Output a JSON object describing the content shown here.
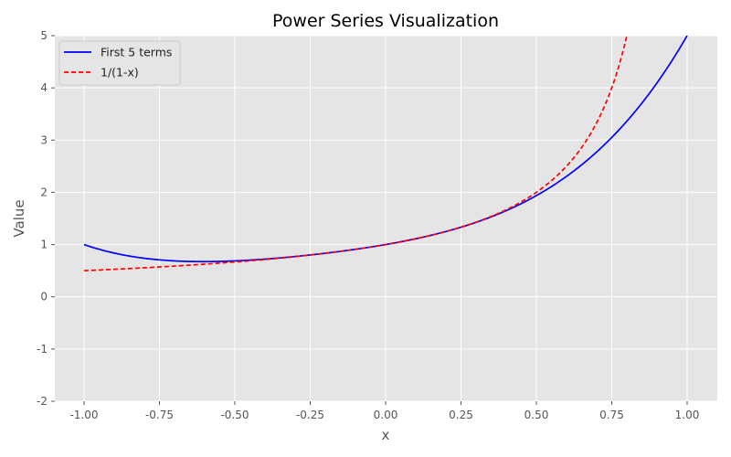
{
  "chart_data": {
    "type": "line",
    "title": "Power Series Visualization",
    "xlabel": "x",
    "ylabel": "Value",
    "xlim": [
      -1.1,
      1.1
    ],
    "ylim": [
      -2,
      5
    ],
    "xticks": [
      -1.0,
      -0.75,
      -0.5,
      -0.25,
      0.0,
      0.25,
      0.5,
      0.75,
      1.0
    ],
    "xtick_labels": [
      "-1.00",
      "-0.75",
      "-0.50",
      "-0.25",
      "0.00",
      "0.25",
      "0.50",
      "0.75",
      "1.00"
    ],
    "yticks": [
      -2,
      -1,
      0,
      1,
      2,
      3,
      4,
      5
    ],
    "ytick_labels": [
      "-2",
      "-1",
      "0",
      "1",
      "2",
      "3",
      "4",
      "5"
    ],
    "grid": true,
    "legend_position": "upper left",
    "series": [
      {
        "name": "First 5 terms",
        "color": "#0000ff",
        "style": "solid",
        "formula": "1 + x + x^2 + x^3 + x^4",
        "x": [
          -1.0,
          -0.75,
          -0.5,
          -0.25,
          0.0,
          0.25,
          0.5,
          0.75,
          1.0
        ],
        "values": [
          1.0,
          0.684,
          0.688,
          0.801,
          1.0,
          1.332,
          1.938,
          3.051,
          5.0
        ]
      },
      {
        "name": "1/(1-x)",
        "color": "#ff0000",
        "style": "dashed",
        "formula": "1/(1-x)",
        "x": [
          -1.0,
          -0.75,
          -0.5,
          -0.25,
          0.0,
          0.25,
          0.5,
          0.75,
          0.8
        ],
        "values": [
          0.5,
          0.571,
          0.667,
          0.8,
          1.0,
          1.333,
          2.0,
          4.0,
          5.0
        ]
      }
    ]
  },
  "colors": {
    "plot_background": "#e5e5e5",
    "grid": "#ffffff",
    "tick_text": "#555555"
  }
}
